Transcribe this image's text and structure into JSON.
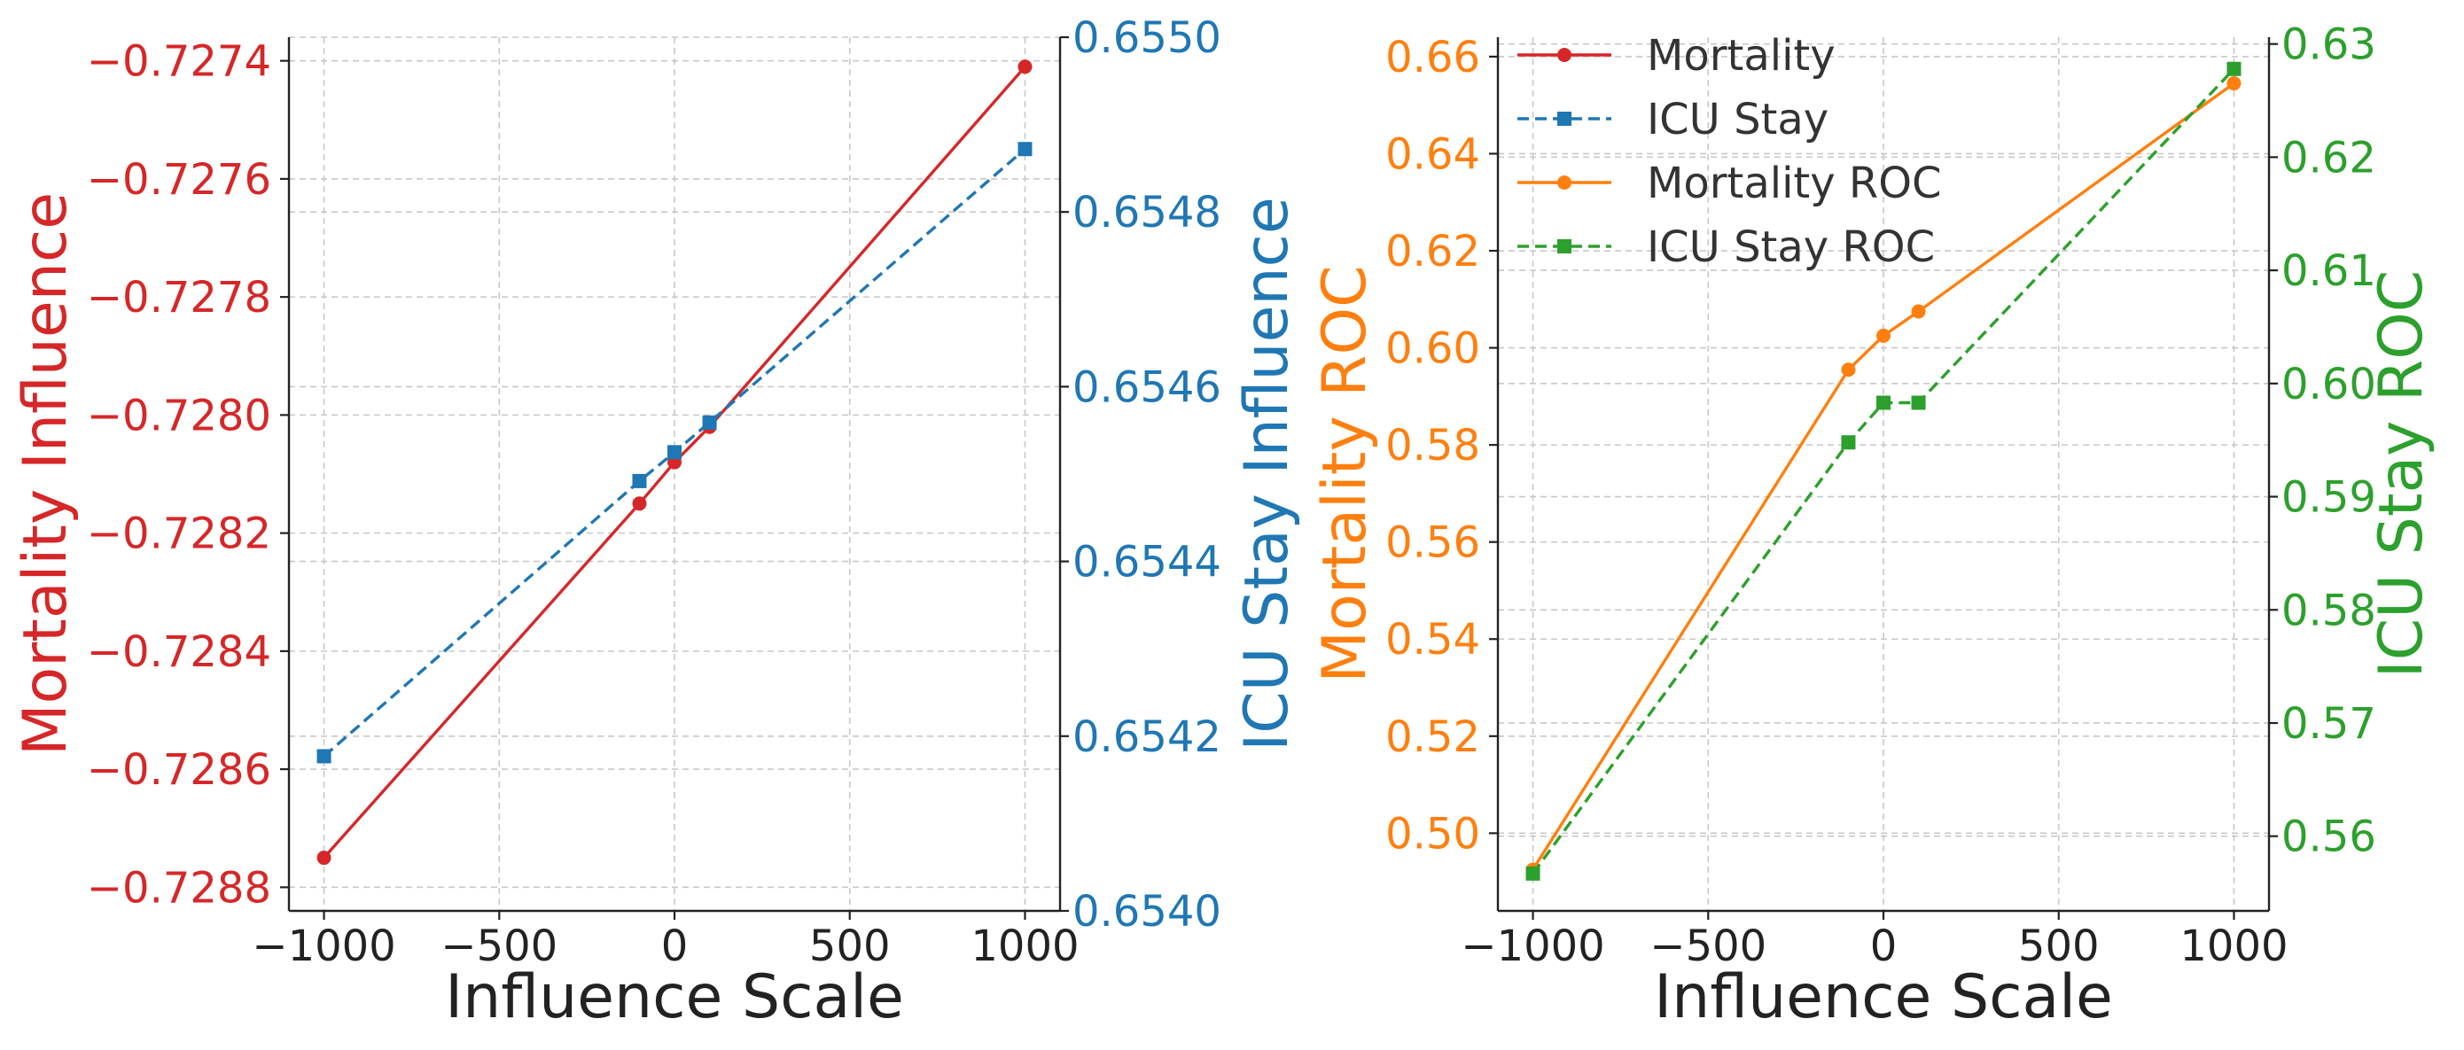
{
  "chart_data": [
    {
      "type": "line",
      "panel": "left",
      "xlabel": "Influence Scale",
      "xlim": [
        -1100,
        1100
      ],
      "xticks": [
        -1000,
        -500,
        0,
        500,
        1000
      ],
      "x": [
        -1000,
        -100,
        0,
        100,
        1000
      ],
      "left_axis": {
        "label": "Mortality Influence",
        "color": "#d62728",
        "ylim": [
          -0.72884,
          -0.72736
        ],
        "ticks": [
          -0.7288,
          -0.7286,
          -0.7284,
          -0.7282,
          -0.728,
          -0.7278,
          -0.7276,
          -0.7274
        ],
        "tick_labels": [
          "−0.7288",
          "−0.7286",
          "−0.7284",
          "−0.7282",
          "−0.7280",
          "−0.7278",
          "−0.7276",
          "−0.7274"
        ]
      },
      "right_axis": {
        "label": "ICU Stay Influence",
        "color": "#1f77b4",
        "ylim": [
          0.654,
          0.655
        ],
        "ticks": [
          0.654,
          0.6542,
          0.6544,
          0.6546,
          0.6548,
          0.655
        ],
        "tick_labels": [
          "0.6540",
          "0.6542",
          "0.6544",
          "0.6546",
          "0.6548",
          "0.6550"
        ]
      },
      "series": [
        {
          "name": "Mortality",
          "axis": "left",
          "color": "#d62728",
          "marker": "circle",
          "dash": "solid",
          "values": [
            -0.72875,
            -0.72815,
            -0.72808,
            -0.72802,
            -0.72741
          ]
        },
        {
          "name": "ICU Stay",
          "axis": "right",
          "color": "#1f77b4",
          "marker": "square",
          "dash": "dashed",
          "values": [
            0.654177,
            0.654492,
            0.654525,
            0.654559,
            0.654872
          ]
        }
      ]
    },
    {
      "type": "line",
      "panel": "right",
      "xlabel": "Influence Scale",
      "xlim": [
        -1100,
        1100
      ],
      "xticks": [
        -1000,
        -500,
        0,
        500,
        1000
      ],
      "x": [
        -1000,
        -100,
        0,
        100,
        1000
      ],
      "left_axis": {
        "label": "Mortality ROC",
        "color": "#ff7f0e",
        "ylim": [
          0.484,
          0.664
        ],
        "ticks": [
          0.5,
          0.52,
          0.54,
          0.56,
          0.58,
          0.6,
          0.62,
          0.64,
          0.66
        ],
        "tick_labels": [
          "0.50",
          "0.52",
          "0.54",
          "0.56",
          "0.58",
          "0.60",
          "0.62",
          "0.64",
          "0.66"
        ]
      },
      "right_axis": {
        "label": "ICU Stay ROC",
        "color": "#2ca02c",
        "ylim": [
          0.5534,
          0.6306
        ],
        "ticks": [
          0.56,
          0.57,
          0.58,
          0.59,
          0.6,
          0.61,
          0.62,
          0.63
        ],
        "tick_labels": [
          "0.56",
          "0.57",
          "0.58",
          "0.59",
          "0.60",
          "0.61",
          "0.62",
          "0.63"
        ]
      },
      "series": [
        {
          "name": "Mortality ROC",
          "axis": "left",
          "color": "#ff7f0e",
          "marker": "circle",
          "dash": "solid",
          "values": [
            0.4925,
            0.5955,
            0.6025,
            0.6075,
            0.6545
          ]
        },
        {
          "name": "ICU Stay ROC",
          "axis": "right",
          "color": "#2ca02c",
          "marker": "square",
          "dash": "dashed",
          "values": [
            0.5567,
            0.5948,
            0.5983,
            0.5983,
            0.6278
          ]
        }
      ]
    }
  ],
  "legend": {
    "placement": "top-left of right panel",
    "entries": [
      {
        "label": "Mortality",
        "color": "#d62728",
        "marker": "circle",
        "dash": "solid"
      },
      {
        "label": "ICU Stay",
        "color": "#1f77b4",
        "marker": "square",
        "dash": "dashed"
      },
      {
        "label": "Mortality ROC",
        "color": "#ff7f0e",
        "marker": "circle",
        "dash": "solid"
      },
      {
        "label": "ICU Stay ROC",
        "color": "#2ca02c",
        "marker": "square",
        "dash": "dashed"
      }
    ]
  }
}
